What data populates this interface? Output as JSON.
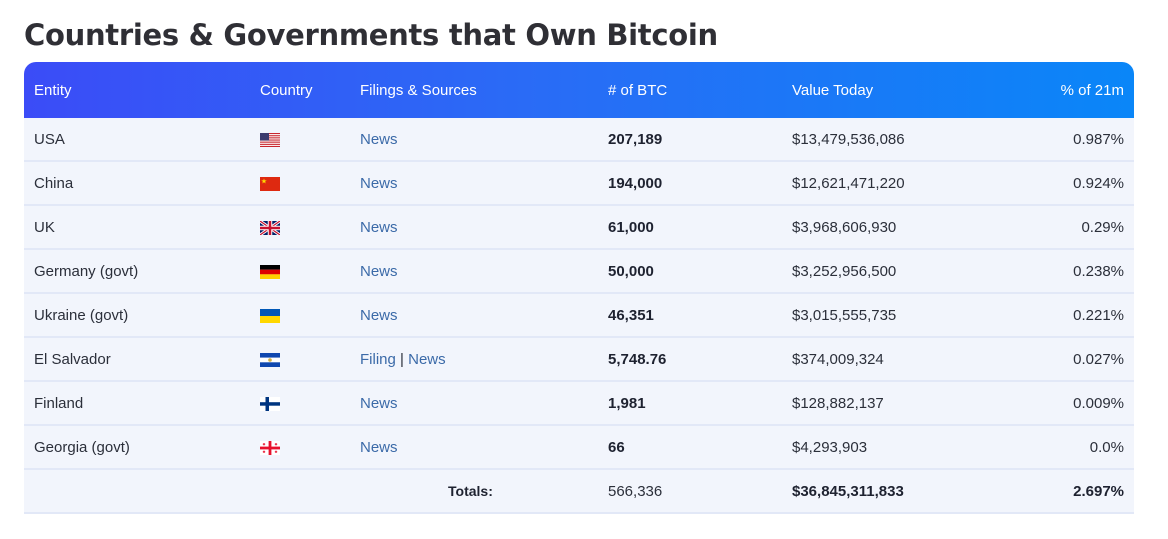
{
  "page": {
    "title": "Countries & Governments that Own Bitcoin"
  },
  "table": {
    "headers": {
      "entity": "Entity",
      "country": "Country",
      "sources": "Filings & Sources",
      "btc": "# of BTC",
      "value": "Value Today",
      "pct": "% of 21m"
    },
    "rows": [
      {
        "entity": "USA",
        "flag": "us-flag-icon",
        "links": [
          "News"
        ],
        "btc": "207,189",
        "value": "$13,479,536,086",
        "pct": "0.987%"
      },
      {
        "entity": "China",
        "flag": "china-flag-icon",
        "links": [
          "News"
        ],
        "btc": "194,000",
        "value": "$12,621,471,220",
        "pct": "0.924%"
      },
      {
        "entity": "UK",
        "flag": "uk-flag-icon",
        "links": [
          "News"
        ],
        "btc": "61,000",
        "value": "$3,968,606,930",
        "pct": "0.29%"
      },
      {
        "entity": "Germany (govt)",
        "flag": "germany-flag-icon",
        "links": [
          "News"
        ],
        "btc": "50,000",
        "value": "$3,252,956,500",
        "pct": "0.238%"
      },
      {
        "entity": "Ukraine (govt)",
        "flag": "ukraine-flag-icon",
        "links": [
          "News"
        ],
        "btc": "46,351",
        "value": "$3,015,555,735",
        "pct": "0.221%"
      },
      {
        "entity": "El Salvador",
        "flag": "el-salvador-flag-icon",
        "links": [
          "Filing",
          "News"
        ],
        "btc": "5,748.76",
        "value": "$374,009,324",
        "pct": "0.027%"
      },
      {
        "entity": "Finland",
        "flag": "finland-flag-icon",
        "links": [
          "News"
        ],
        "btc": "1,981",
        "value": "$128,882,137",
        "pct": "0.009%"
      },
      {
        "entity": "Georgia (govt)",
        "flag": "georgia-flag-icon",
        "links": [
          "News"
        ],
        "btc": "66",
        "value": "$4,293,903",
        "pct": "0.0%"
      }
    ],
    "totals": {
      "label": "Totals:",
      "btc": "566,336",
      "value": "$36,845,311,833",
      "pct": "2.697%"
    },
    "separator": "|"
  },
  "colors": {
    "header_gradient_start": "#3b4cf7",
    "header_gradient_end": "#0a86f8",
    "row_bg": "#f2f5fc",
    "link": "#3b6aa8"
  }
}
